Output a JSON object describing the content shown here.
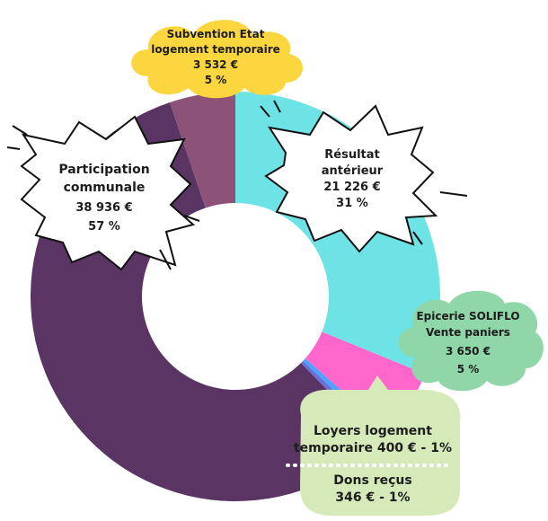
{
  "chart_data": {
    "type": "pie",
    "title": "",
    "slices": [
      {
        "key": "resultat",
        "label_lines": [
          "Résultat",
          "antérieur"
        ],
        "amount": "21 226 €",
        "percent": "31 %",
        "value": 21226,
        "color": "#6ee3e6"
      },
      {
        "key": "epicerie",
        "label_lines": [
          "Epicerie SOLIFLO",
          "Vente paniers"
        ],
        "amount": "3 650 €",
        "percent": "5 %",
        "value": 3650,
        "color": "#ff66cc"
      },
      {
        "key": "loyers",
        "label_lines": [
          "Loyers logement",
          "temporaire 400 € - 1%"
        ],
        "value": 400,
        "color": "#4da3ff"
      },
      {
        "key": "dons",
        "label_lines": [
          "Dons reçus",
          "346 € - 1%"
        ],
        "value": 346,
        "color": "#6b6fdc"
      },
      {
        "key": "participation",
        "label_lines": [
          "Participation",
          "communale"
        ],
        "amount": "38 936 €",
        "percent": "57 %",
        "value": 38936,
        "color": "#5a3563"
      },
      {
        "key": "subvention",
        "label_lines": [
          "Subvention Etat",
          "logement temporaire"
        ],
        "amount": "3 532 €",
        "percent": "5 %",
        "value": 3532,
        "color": "#8c5278"
      }
    ]
  }
}
